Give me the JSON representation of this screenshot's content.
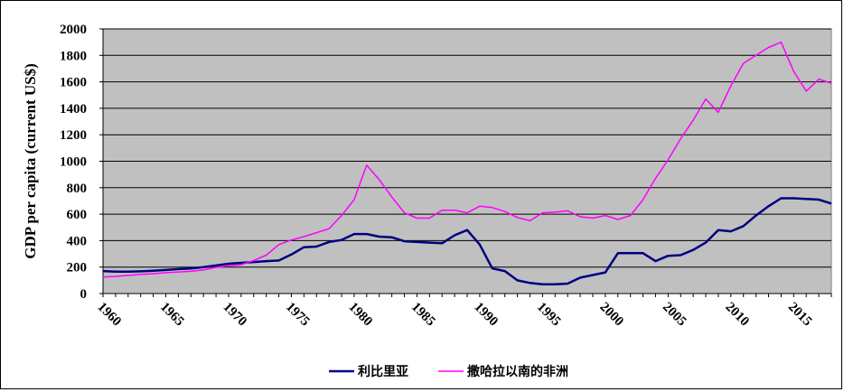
{
  "chart_data": {
    "type": "line",
    "title": "",
    "xlabel": "",
    "ylabel": "GDP per capita (current US$)",
    "ylim": [
      0,
      2000
    ],
    "xlim": [
      1960,
      2018
    ],
    "yticks": [
      0,
      200,
      400,
      600,
      800,
      1000,
      1200,
      1400,
      1600,
      1800,
      2000
    ],
    "xtick_labels": [
      "1960",
      "1965",
      "1970",
      "1975",
      "1980",
      "1985",
      "1990",
      "1995",
      "2000",
      "2005",
      "2010",
      "2015"
    ],
    "grid": "horizontal",
    "plot_background": "#C0C0C0",
    "legend_position": "bottom",
    "x": [
      1960,
      1961,
      1962,
      1963,
      1964,
      1965,
      1966,
      1967,
      1968,
      1969,
      1970,
      1971,
      1972,
      1973,
      1974,
      1975,
      1976,
      1977,
      1978,
      1979,
      1980,
      1981,
      1982,
      1983,
      1984,
      1985,
      1986,
      1987,
      1988,
      1989,
      1990,
      1991,
      1992,
      1993,
      1994,
      1995,
      1996,
      1997,
      1998,
      1999,
      2000,
      2001,
      2002,
      2003,
      2004,
      2005,
      2006,
      2007,
      2008,
      2009,
      2010,
      2011,
      2012,
      2013,
      2014,
      2015,
      2016,
      2017,
      2018
    ],
    "series": [
      {
        "name": "利比里亚",
        "color": "#000080",
        "values": [
          170,
          165,
          165,
          168,
          172,
          178,
          185,
          190,
          200,
          212,
          225,
          232,
          238,
          245,
          250,
          295,
          350,
          355,
          390,
          405,
          450,
          450,
          430,
          425,
          395,
          390,
          385,
          380,
          440,
          480,
          370,
          190,
          170,
          100,
          80,
          70,
          70,
          75,
          120,
          140,
          160,
          305,
          305,
          305,
          245,
          285,
          290,
          330,
          385,
          480,
          470,
          510,
          590,
          660,
          720,
          720,
          715,
          710,
          680
        ]
      },
      {
        "name": "撒哈拉以南的非洲",
        "color": "#FF00FF",
        "values": [
          125,
          130,
          137,
          145,
          150,
          158,
          163,
          168,
          178,
          198,
          210,
          218,
          250,
          290,
          370,
          405,
          430,
          460,
          490,
          590,
          710,
          970,
          860,
          730,
          610,
          570,
          570,
          630,
          630,
          610,
          660,
          650,
          620,
          575,
          550,
          610,
          615,
          625,
          580,
          570,
          590,
          560,
          590,
          710,
          870,
          1010,
          1170,
          1310,
          1470,
          1370,
          1570,
          1740,
          1800,
          1860,
          1900,
          1680,
          1530,
          1620,
          1590
        ]
      }
    ]
  }
}
